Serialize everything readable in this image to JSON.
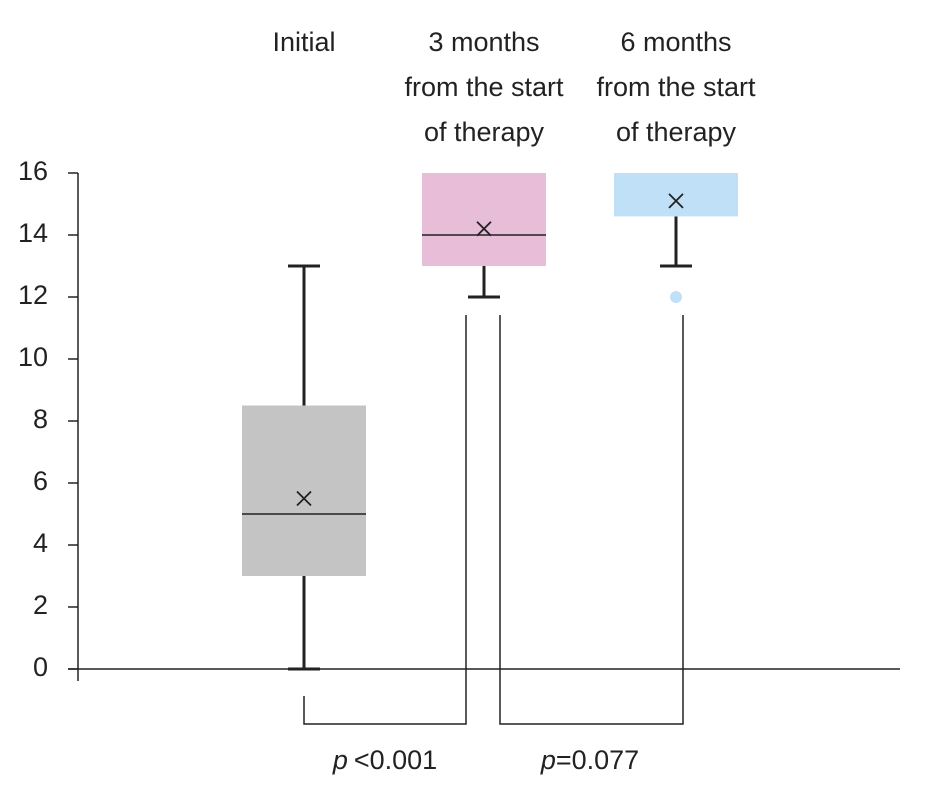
{
  "chart_data": {
    "type": "box",
    "categories": [
      "Initial",
      "3 months\nfrom the start\nof therapy",
      "6 months\nfrom the start\nof therapy"
    ],
    "colors": [
      "#c4c4c4",
      "#e8bdd8",
      "#bfe0f7"
    ],
    "boxes": [
      {
        "whisker_low": 0,
        "q1": 3,
        "median": 5,
        "q3": 8.5,
        "whisker_high": 13,
        "mean": 5.5,
        "outliers": []
      },
      {
        "whisker_low": 12,
        "q1": 13,
        "median": 14,
        "q3": 16,
        "whisker_high": 16,
        "mean": 14.2,
        "outliers": []
      },
      {
        "whisker_low": 13,
        "q1": 14.6,
        "median": 16,
        "q3": 16,
        "whisker_high": 16,
        "mean": 15.1,
        "outliers": [
          12
        ]
      }
    ],
    "ylim": [
      0,
      16
    ],
    "yticks": [
      0,
      2,
      4,
      6,
      8,
      10,
      12,
      14,
      16
    ],
    "annotations": [
      {
        "symbol": "p",
        "text": "<0.001"
      },
      {
        "symbol": "p",
        "text": "=0.077"
      }
    ]
  }
}
